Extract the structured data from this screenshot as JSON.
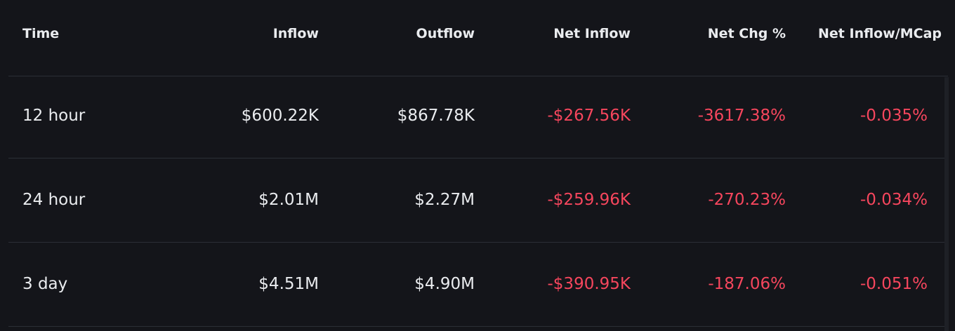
{
  "table": {
    "headers": [
      "Time",
      "Inflow",
      "Outflow",
      "Net Inflow",
      "Net Chg %",
      "Net Inflow/MCap"
    ],
    "rows": [
      [
        "12 hour",
        "$600.22K",
        "$867.78K",
        "-$267.56K",
        "-3617.38%",
        "-0.035%"
      ],
      [
        "24 hour",
        "$2.01M",
        "$2.27M",
        "-$259.96K",
        "-270.23%",
        "-0.034%"
      ],
      [
        "3 day",
        "$4.51M",
        "$4.90M",
        "-$390.95K",
        "-187.06%",
        "-0.051%"
      ]
    ]
  }
}
